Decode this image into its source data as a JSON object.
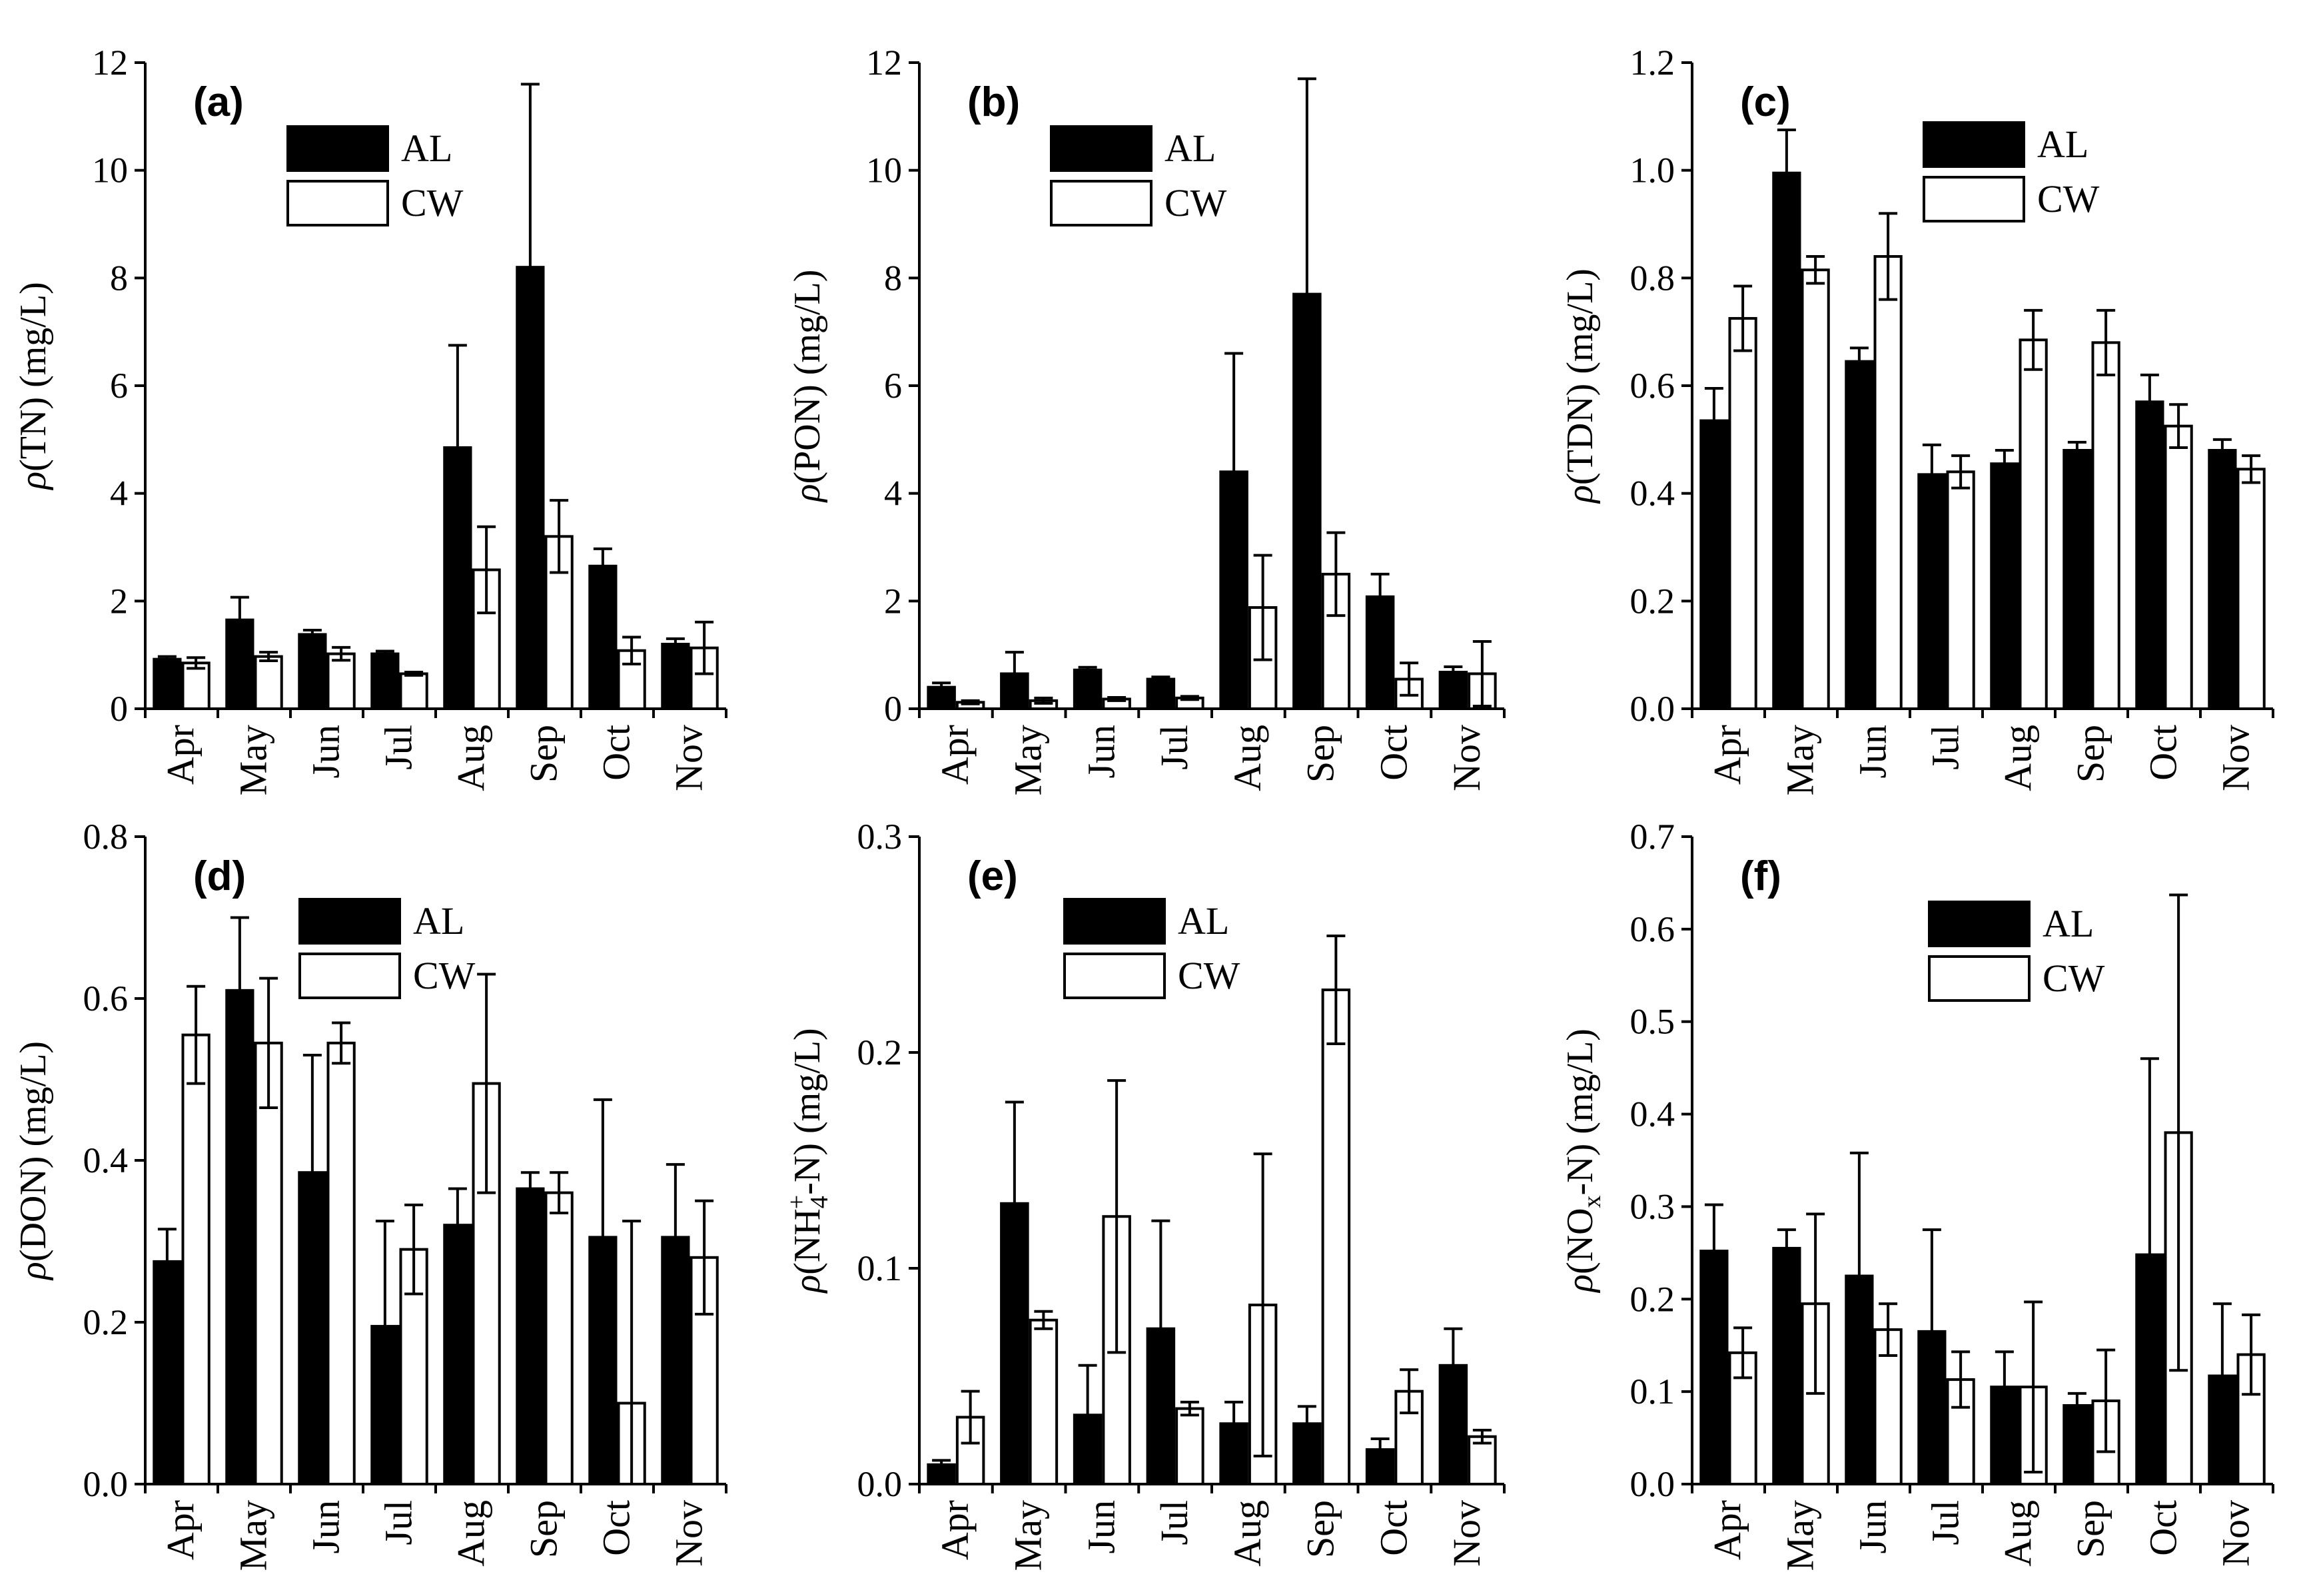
{
  "figure": {
    "xlabel_months": [
      "Apr",
      "May",
      "Jun",
      "Jul",
      "Aug",
      "Sep",
      "Oct",
      "Nov"
    ],
    "legend": [
      "AL",
      "CW"
    ],
    "colors": {
      "AL": "#000000",
      "CW": "#ffffff",
      "axis": "#000000"
    }
  },
  "chart_data": [
    {
      "type": "bar",
      "panel": "(a)",
      "title": "",
      "xlabel": "",
      "ylabel": {
        "rho": "ρ",
        "main": "(TN) (mg/L)"
      },
      "categories": [
        "Apr",
        "May",
        "Jun",
        "Jul",
        "Aug",
        "Sep",
        "Oct",
        "Nov"
      ],
      "ylim": [
        0,
        12
      ],
      "yticks": [
        0,
        2,
        4,
        6,
        8,
        10,
        12
      ],
      "ytick_labels": [
        "0",
        "2",
        "4",
        "6",
        "8",
        "10",
        "12"
      ],
      "legend_position": "top-left",
      "series": [
        {
          "name": "AL",
          "values": [
            0.92,
            1.65,
            1.38,
            1.02,
            4.85,
            8.2,
            2.65,
            1.2
          ],
          "errors": [
            0.05,
            0.42,
            0.08,
            0.05,
            1.9,
            3.4,
            0.32,
            0.1
          ]
        },
        {
          "name": "CW",
          "values": [
            0.85,
            0.97,
            1.02,
            0.65,
            2.58,
            3.2,
            1.08,
            1.13
          ],
          "errors": [
            0.1,
            0.08,
            0.12,
            0.03,
            0.8,
            0.67,
            0.25,
            0.48
          ]
        }
      ]
    },
    {
      "type": "bar",
      "panel": "(b)",
      "title": "",
      "xlabel": "",
      "ylabel": {
        "rho": "ρ",
        "main": "(PON) (mg/L)"
      },
      "categories": [
        "Apr",
        "May",
        "Jun",
        "Jul",
        "Aug",
        "Sep",
        "Oct",
        "Nov"
      ],
      "ylim": [
        0,
        12
      ],
      "yticks": [
        0,
        2,
        4,
        6,
        8,
        10,
        12
      ],
      "ytick_labels": [
        "0",
        "2",
        "4",
        "6",
        "8",
        "10",
        "12"
      ],
      "legend_position": "top-left",
      "series": [
        {
          "name": "AL",
          "values": [
            0.4,
            0.65,
            0.72,
            0.55,
            4.4,
            7.7,
            2.08,
            0.68
          ],
          "errors": [
            0.08,
            0.4,
            0.05,
            0.04,
            2.2,
            4.0,
            0.42,
            0.1
          ]
        },
        {
          "name": "CW",
          "values": [
            0.12,
            0.15,
            0.18,
            0.2,
            1.88,
            2.5,
            0.55,
            0.65
          ],
          "errors": [
            0.03,
            0.05,
            0.03,
            0.03,
            0.97,
            0.77,
            0.3,
            0.6
          ]
        }
      ]
    },
    {
      "type": "bar",
      "panel": "(c)",
      "title": "",
      "xlabel": "",
      "ylabel": {
        "rho": "ρ",
        "main": "(TDN) (mg/L)"
      },
      "categories": [
        "Apr",
        "May",
        "Jun",
        "Jul",
        "Aug",
        "Sep",
        "Oct",
        "Nov"
      ],
      "ylim": [
        0,
        1.2
      ],
      "yticks": [
        0,
        0.2,
        0.4,
        0.6,
        0.8,
        1.0,
        1.2
      ],
      "ytick_labels": [
        "0.0",
        "0.2",
        "0.4",
        "0.6",
        "0.8",
        "1.0",
        "1.2"
      ],
      "legend_position": "top-center",
      "series": [
        {
          "name": "AL",
          "values": [
            0.535,
            0.995,
            0.645,
            0.435,
            0.455,
            0.48,
            0.57,
            0.48
          ],
          "errors": [
            0.06,
            0.08,
            0.025,
            0.055,
            0.025,
            0.015,
            0.05,
            0.02
          ]
        },
        {
          "name": "CW",
          "values": [
            0.725,
            0.815,
            0.84,
            0.44,
            0.685,
            0.68,
            0.525,
            0.445
          ],
          "errors": [
            0.06,
            0.025,
            0.08,
            0.03,
            0.055,
            0.06,
            0.04,
            0.025
          ]
        }
      ]
    },
    {
      "type": "bar",
      "panel": "(d)",
      "title": "",
      "xlabel": "",
      "ylabel": {
        "rho": "ρ",
        "main": "(DON) (mg/L)"
      },
      "categories": [
        "Apr",
        "May",
        "Jun",
        "Jul",
        "Aug",
        "Sep",
        "Oct",
        "Nov"
      ],
      "ylim": [
        0,
        0.8
      ],
      "yticks": [
        0,
        0.2,
        0.4,
        0.6,
        0.8
      ],
      "ytick_labels": [
        "0.0",
        "0.2",
        "0.4",
        "0.6",
        "0.8"
      ],
      "legend_position": "top-left",
      "series": [
        {
          "name": "AL",
          "values": [
            0.275,
            0.61,
            0.385,
            0.195,
            0.32,
            0.365,
            0.305,
            0.305
          ],
          "errors": [
            0.04,
            0.09,
            0.145,
            0.13,
            0.045,
            0.02,
            0.17,
            0.09
          ]
        },
        {
          "name": "CW",
          "values": [
            0.555,
            0.545,
            0.545,
            0.29,
            0.495,
            0.36,
            0.1,
            0.28
          ],
          "errors": [
            0.06,
            0.08,
            0.025,
            0.055,
            0.135,
            0.025,
            0.225,
            0.07
          ]
        }
      ]
    },
    {
      "type": "bar",
      "panel": "(e)",
      "title": "",
      "xlabel": "",
      "ylabel": {
        "rho": "ρ",
        "pre": "(NH",
        "sub": "4",
        "sup": "+",
        "post": "-N) (mg/L)"
      },
      "categories": [
        "Apr",
        "May",
        "Jun",
        "Jul",
        "Aug",
        "Sep",
        "Oct",
        "Nov"
      ],
      "ylim": [
        0,
        0.3
      ],
      "yticks": [
        0,
        0.1,
        0.2,
        0.3
      ],
      "ytick_labels": [
        "0.0",
        "0.1",
        "0.2",
        "0.3"
      ],
      "legend_position": "top-center",
      "series": [
        {
          "name": "AL",
          "values": [
            0.009,
            0.13,
            0.032,
            0.072,
            0.028,
            0.028,
            0.016,
            0.055
          ],
          "errors": [
            0.002,
            0.047,
            0.023,
            0.05,
            0.01,
            0.008,
            0.005,
            0.017
          ]
        },
        {
          "name": "CW",
          "values": [
            0.031,
            0.076,
            0.124,
            0.035,
            0.083,
            0.229,
            0.043,
            0.022
          ],
          "errors": [
            0.012,
            0.004,
            0.063,
            0.003,
            0.07,
            0.025,
            0.01,
            0.003
          ]
        }
      ]
    },
    {
      "type": "bar",
      "panel": "(f)",
      "title": "",
      "xlabel": "",
      "ylabel": {
        "rho": "ρ",
        "pre": "(NO",
        "sub": "x",
        "post": "-N) (mg/L)"
      },
      "categories": [
        "Apr",
        "May",
        "Jun",
        "Jul",
        "Aug",
        "Sep",
        "Oct",
        "Nov"
      ],
      "ylim": [
        0,
        0.7
      ],
      "yticks": [
        0,
        0.1,
        0.2,
        0.3,
        0.4,
        0.5,
        0.6,
        0.7
      ],
      "ytick_labels": [
        "0.0",
        "0.1",
        "0.2",
        "0.3",
        "0.4",
        "0.5",
        "0.6",
        "0.7"
      ],
      "legend_position": "top-center",
      "series": [
        {
          "name": "AL",
          "values": [
            0.252,
            0.255,
            0.225,
            0.165,
            0.105,
            0.085,
            0.248,
            0.117
          ],
          "errors": [
            0.05,
            0.02,
            0.133,
            0.11,
            0.038,
            0.013,
            0.212,
            0.078
          ]
        },
        {
          "name": "CW",
          "values": [
            0.142,
            0.195,
            0.167,
            0.113,
            0.105,
            0.09,
            0.38,
            0.14
          ],
          "errors": [
            0.027,
            0.097,
            0.028,
            0.03,
            0.092,
            0.055,
            0.257,
            0.043
          ]
        }
      ]
    }
  ]
}
